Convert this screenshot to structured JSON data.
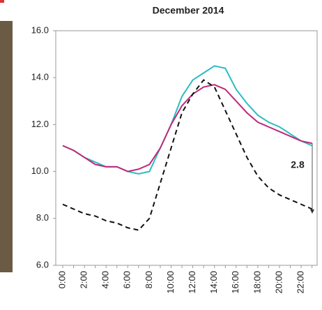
{
  "chart_data": {
    "type": "line",
    "title": "December 2014",
    "categories": [
      "0:00",
      null,
      "2:00",
      null,
      "4:00",
      null,
      "6:00",
      null,
      "8:00",
      null,
      "10:00",
      null,
      "12:00",
      null,
      "14:00",
      null,
      "16:00",
      null,
      "18:00",
      null,
      "20:00",
      null,
      "22:00",
      null
    ],
    "series": [
      {
        "color": "#2bbcc4",
        "dash": false,
        "values": [
          11.1,
          10.9,
          10.6,
          10.4,
          10.2,
          10.2,
          10.0,
          9.9,
          10.0,
          11.0,
          12.0,
          13.2,
          13.9,
          14.2,
          14.5,
          14.4,
          13.5,
          12.9,
          12.4,
          12.1,
          11.9,
          11.6,
          11.3,
          11.1
        ]
      },
      {
        "color": "#c0287a",
        "dash": false,
        "values": [
          11.1,
          10.9,
          10.6,
          10.3,
          10.2,
          10.2,
          10.0,
          10.1,
          10.3,
          11.0,
          12.0,
          12.8,
          13.3,
          13.6,
          13.7,
          13.5,
          13.0,
          12.5,
          12.1,
          11.9,
          11.7,
          11.5,
          11.3,
          11.2
        ]
      },
      {
        "color": "#111111",
        "dash": true,
        "values": [
          8.6,
          8.4,
          8.2,
          8.1,
          7.9,
          7.8,
          7.6,
          7.5,
          8.0,
          9.5,
          11.0,
          12.5,
          13.3,
          13.9,
          13.6,
          12.6,
          11.6,
          10.6,
          9.8,
          9.3,
          9.0,
          8.8,
          8.6,
          8.4
        ]
      }
    ],
    "ylim": [
      6,
      16
    ],
    "yticks": [
      {
        "value": 6,
        "label": "6.0"
      },
      {
        "value": 8,
        "label": "8.0"
      },
      {
        "value": 10,
        "label": "10.0"
      },
      {
        "value": 12,
        "label": "12.0"
      },
      {
        "value": 14,
        "label": "14.0"
      },
      {
        "value": 16,
        "label": "16.0"
      }
    ],
    "annotation": "2.8"
  }
}
